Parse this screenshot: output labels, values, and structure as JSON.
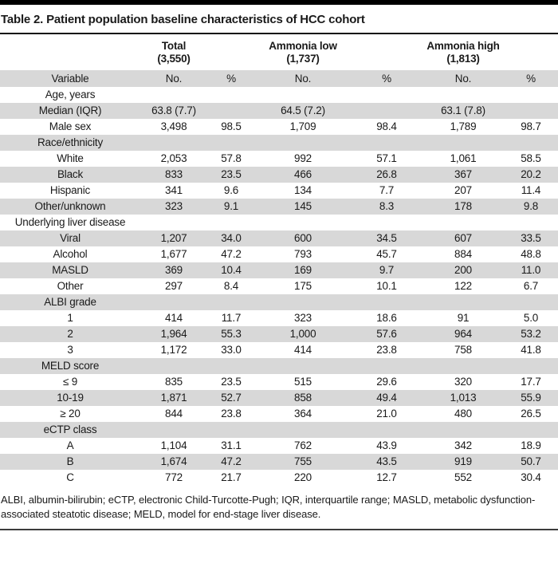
{
  "title": "Table 2. Patient population baseline characteristics of HCC cohort",
  "table": {
    "group_headers": [
      {
        "label": "Total",
        "n": "(3,550)"
      },
      {
        "label": "Ammonia low",
        "n": "(1,737)"
      },
      {
        "label": "Ammonia high",
        "n": "(1,813)"
      }
    ],
    "column_headers": [
      "Variable",
      "No.",
      "%",
      "No.",
      "%",
      "No.",
      "%"
    ],
    "rows": [
      {
        "type": "section",
        "label": "Age, years",
        "cells": [
          "",
          "",
          "",
          "",
          "",
          ""
        ]
      },
      {
        "type": "data",
        "label": "Median (IQR)",
        "cells": [
          "63.8 (7.7)",
          "",
          "64.5 (7.2)",
          "",
          "63.1 (7.8)",
          ""
        ]
      },
      {
        "type": "data",
        "label": "Male sex",
        "cells": [
          "3,498",
          "98.5",
          "1,709",
          "98.4",
          "1,789",
          "98.7"
        ]
      },
      {
        "type": "section",
        "label": "Race/ethnicity",
        "cells": [
          "",
          "",
          "",
          "",
          "",
          ""
        ]
      },
      {
        "type": "data",
        "label": "White",
        "cells": [
          "2,053",
          "57.8",
          "992",
          "57.1",
          "1,061",
          "58.5"
        ]
      },
      {
        "type": "data",
        "label": "Black",
        "cells": [
          "833",
          "23.5",
          "466",
          "26.8",
          "367",
          "20.2"
        ]
      },
      {
        "type": "data",
        "label": "Hispanic",
        "cells": [
          "341",
          "9.6",
          "134",
          "7.7",
          "207",
          "11.4"
        ]
      },
      {
        "type": "data",
        "label": "Other/unknown",
        "cells": [
          "323",
          "9.1",
          "145",
          "8.3",
          "178",
          "9.8"
        ]
      },
      {
        "type": "section",
        "label": "Underlying liver disease",
        "cells": [
          "",
          "",
          "",
          "",
          "",
          ""
        ]
      },
      {
        "type": "data",
        "label": "Viral",
        "cells": [
          "1,207",
          "34.0",
          "600",
          "34.5",
          "607",
          "33.5"
        ]
      },
      {
        "type": "data",
        "label": "Alcohol",
        "cells": [
          "1,677",
          "47.2",
          "793",
          "45.7",
          "884",
          "48.8"
        ]
      },
      {
        "type": "data",
        "label": "MASLD",
        "cells": [
          "369",
          "10.4",
          "169",
          "9.7",
          "200",
          "11.0"
        ]
      },
      {
        "type": "data",
        "label": "Other",
        "cells": [
          "297",
          "8.4",
          "175",
          "10.1",
          "122",
          "6.7"
        ]
      },
      {
        "type": "section",
        "label": "ALBI grade",
        "cells": [
          "",
          "",
          "",
          "",
          "",
          ""
        ]
      },
      {
        "type": "data",
        "label": "1",
        "cells": [
          "414",
          "11.7",
          "323",
          "18.6",
          "91",
          "5.0"
        ]
      },
      {
        "type": "data",
        "label": "2",
        "cells": [
          "1,964",
          "55.3",
          "1,000",
          "57.6",
          "964",
          "53.2"
        ]
      },
      {
        "type": "data",
        "label": "3",
        "cells": [
          "1,172",
          "33.0",
          "414",
          "23.8",
          "758",
          "41.8"
        ]
      },
      {
        "type": "section",
        "label": "MELD score",
        "cells": [
          "",
          "",
          "",
          "",
          "",
          ""
        ]
      },
      {
        "type": "data",
        "label": "≤ 9",
        "cells": [
          "835",
          "23.5",
          "515",
          "29.6",
          "320",
          "17.7"
        ]
      },
      {
        "type": "data",
        "label": "10-19",
        "cells": [
          "1,871",
          "52.7",
          "858",
          "49.4",
          "1,013",
          "55.9"
        ]
      },
      {
        "type": "data",
        "label": "≥ 20",
        "cells": [
          "844",
          "23.8",
          "364",
          "21.0",
          "480",
          "26.5"
        ]
      },
      {
        "type": "section",
        "label": "eCTP class",
        "cells": [
          "",
          "",
          "",
          "",
          "",
          ""
        ]
      },
      {
        "type": "data",
        "label": "A",
        "cells": [
          "1,104",
          "31.1",
          "762",
          "43.9",
          "342",
          "18.9"
        ]
      },
      {
        "type": "data",
        "label": "B",
        "cells": [
          "1,674",
          "47.2",
          "755",
          "43.5",
          "919",
          "50.7"
        ]
      },
      {
        "type": "data",
        "label": "C",
        "cells": [
          "772",
          "21.7",
          "220",
          "12.7",
          "552",
          "30.4"
        ]
      }
    ]
  },
  "footnote": "ALBI, albumin-bilirubin; eCTP, electronic Child-Turcotte-Pugh; IQR, interquartile range; MASLD, metabolic dysfunction-associated steatotic disease; MELD, model for end-stage liver disease.",
  "colors": {
    "row_shade": "#d8d8d8",
    "top_rule": "#000000",
    "title_rule": "#111111",
    "bottom_rule": "#3c3c3c"
  }
}
